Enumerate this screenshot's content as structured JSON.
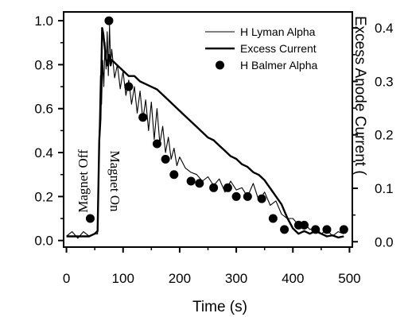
{
  "chart_data": {
    "type": "line",
    "xlabel": "Time (s)",
    "ylabel_right": "Excess Anode Current (",
    "xlim": [
      -5,
      505
    ],
    "ylim_left": [
      -0.03,
      1.04
    ],
    "ylim_right": [
      -0.01,
      0.43
    ],
    "x_ticks": [
      0,
      100,
      200,
      300,
      400,
      500
    ],
    "y_left_ticks": [
      0.0,
      0.2,
      0.4,
      0.6,
      0.8,
      1.0
    ],
    "y_right_ticks": [
      0.0,
      0.1,
      0.2,
      0.3,
      0.4
    ],
    "legend_position": "top-right",
    "annotations": [
      {
        "text": "Magnet Off",
        "x": 37,
        "y": 0.27
      },
      {
        "text": "Magnet On",
        "x": 78,
        "y": 0.27
      }
    ],
    "series": [
      {
        "name": "H Lyman Alpha",
        "style": "thin-line",
        "x": [
          0,
          10,
          20,
          30,
          40,
          50,
          55,
          58,
          60,
          62,
          64,
          66,
          68,
          70,
          72,
          74,
          76,
          78,
          80,
          85,
          90,
          95,
          100,
          105,
          110,
          115,
          120,
          125,
          130,
          135,
          140,
          145,
          150,
          155,
          160,
          165,
          170,
          175,
          180,
          185,
          190,
          195,
          200,
          210,
          220,
          230,
          240,
          250,
          260,
          270,
          280,
          290,
          300,
          310,
          320,
          330,
          340,
          350,
          360,
          370,
          380,
          390,
          400,
          410,
          420,
          430,
          440,
          450,
          460,
          470,
          480,
          490
        ],
        "y": [
          0.02,
          0.04,
          0.01,
          0.04,
          0.02,
          0.03,
          0.03,
          0.5,
          0.75,
          0.62,
          0.82,
          0.7,
          0.9,
          0.78,
          0.95,
          0.75,
          0.98,
          0.8,
          0.87,
          0.74,
          0.8,
          0.69,
          0.77,
          0.66,
          0.73,
          0.62,
          0.7,
          0.58,
          0.68,
          0.55,
          0.64,
          0.5,
          0.63,
          0.46,
          0.6,
          0.44,
          0.52,
          0.4,
          0.47,
          0.37,
          0.42,
          0.34,
          0.38,
          0.33,
          0.31,
          0.3,
          0.27,
          0.29,
          0.25,
          0.28,
          0.22,
          0.27,
          0.23,
          0.24,
          0.2,
          0.26,
          0.18,
          0.22,
          0.16,
          0.18,
          0.12,
          0.1,
          0.1,
          0.07,
          0.08,
          0.05,
          0.06,
          0.03,
          0.05,
          0.02,
          0.04,
          0.03
        ]
      },
      {
        "name": "Excess Current",
        "style": "thick-line",
        "axis": "right",
        "x": [
          0,
          20,
          40,
          50,
          55,
          58,
          60,
          63,
          65,
          68,
          70,
          72,
          75,
          78,
          80,
          85,
          90,
          100,
          110,
          120,
          130,
          140,
          150,
          160,
          170,
          180,
          190,
          200,
          210,
          220,
          230,
          240,
          250,
          260,
          270,
          280,
          290,
          300,
          310,
          320,
          330,
          340,
          350,
          360,
          370,
          380,
          390,
          400,
          410,
          420,
          430,
          440,
          450,
          460,
          470,
          480,
          490
        ],
        "y": [
          0.01,
          0.01,
          0.01,
          0.015,
          0.02,
          0.19,
          0.23,
          0.4,
          0.39,
          0.36,
          0.34,
          0.33,
          0.35,
          0.33,
          0.34,
          0.335,
          0.33,
          0.32,
          0.31,
          0.31,
          0.3,
          0.295,
          0.29,
          0.285,
          0.275,
          0.265,
          0.255,
          0.245,
          0.235,
          0.225,
          0.215,
          0.205,
          0.195,
          0.19,
          0.18,
          0.17,
          0.16,
          0.155,
          0.145,
          0.14,
          0.13,
          0.125,
          0.115,
          0.1,
          0.085,
          0.07,
          0.045,
          0.025,
          0.015,
          0.02,
          0.015,
          0.02,
          0.015,
          0.01,
          0.012,
          0.008,
          0.01
        ]
      },
      {
        "name": "H Balmer Alpha",
        "style": "markers",
        "x": [
          42,
          75,
          110,
          135,
          160,
          175,
          190,
          220,
          235,
          260,
          285,
          300,
          320,
          345,
          365,
          385,
          410,
          420,
          440,
          460,
          490
        ],
        "y": [
          0.1,
          1.0,
          0.7,
          0.56,
          0.44,
          0.37,
          0.3,
          0.27,
          0.26,
          0.24,
          0.24,
          0.2,
          0.2,
          0.19,
          0.1,
          0.05,
          0.07,
          0.07,
          0.05,
          0.05,
          0.05
        ]
      }
    ]
  }
}
